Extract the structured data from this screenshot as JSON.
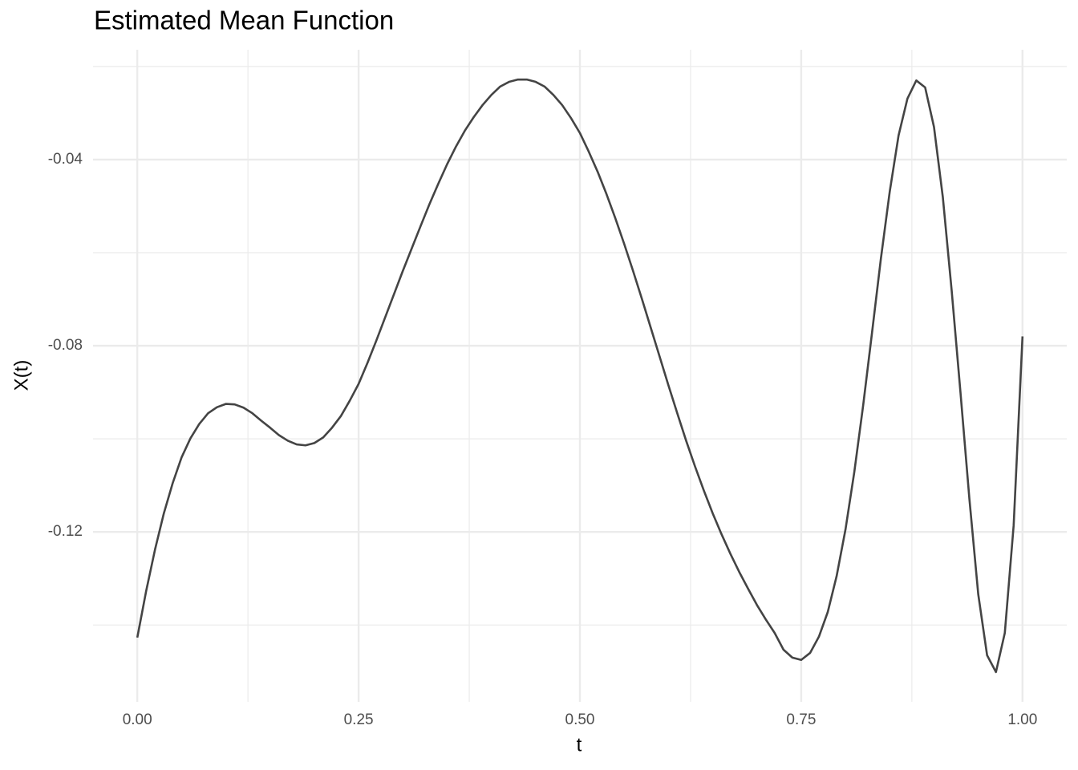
{
  "chart_data": {
    "type": "line",
    "title": "Estimated Mean Function",
    "x_label": "t",
    "y_label": "X(t)",
    "color": "#444444",
    "grid": true,
    "xlim": [
      -0.05,
      1.05
    ],
    "ylim": [
      -0.1565,
      -0.0164
    ],
    "xticks": [
      {
        "value": 0,
        "label": "0.00"
      },
      0.25,
      {
        "value": 0.5,
        "label": "0.50"
      },
      0.75,
      {
        "value": 1,
        "label": "1.00"
      }
    ],
    "yticks": [
      -0.12,
      -0.08,
      -0.04
    ],
    "x_minor_grid": [
      0.125,
      0.375,
      0.625,
      0.875
    ],
    "y_minor_grid": [
      -0.14,
      -0.1,
      -0.06,
      -0.02
    ],
    "x": [
      0,
      0.01,
      0.02,
      0.03,
      0.04,
      0.05,
      0.06,
      0.07,
      0.08,
      0.09,
      0.1,
      0.11,
      0.12,
      0.13,
      0.14,
      0.15,
      0.16,
      0.17,
      0.18,
      0.19,
      0.2,
      0.21,
      0.22,
      0.23,
      0.24,
      0.25,
      0.26,
      0.27,
      0.28,
      0.29,
      0.3,
      0.31,
      0.32,
      0.33,
      0.34,
      0.35,
      0.36,
      0.37,
      0.38,
      0.39,
      0.4,
      0.41,
      0.42,
      0.43,
      0.44,
      0.45,
      0.46,
      0.47,
      0.48,
      0.49,
      0.5,
      0.51,
      0.52,
      0.53,
      0.54,
      0.55,
      0.56,
      0.57,
      0.58,
      0.59,
      0.6,
      0.61,
      0.62,
      0.63,
      0.64,
      0.65,
      0.66,
      0.67,
      0.68,
      0.69,
      0.7,
      0.71,
      0.72,
      0.73,
      0.74,
      0.75,
      0.76,
      0.77,
      0.78,
      0.79,
      0.8,
      0.81,
      0.82,
      0.83,
      0.84,
      0.85,
      0.86,
      0.87,
      0.88,
      0.89,
      0.9,
      0.91,
      0.92,
      0.93,
      0.94,
      0.95,
      0.96,
      0.97,
      0.98,
      0.99,
      1
    ],
    "values": [
      -0.1427,
      -0.1327,
      -0.1238,
      -0.116,
      -0.1095,
      -0.104,
      -0.0999,
      -0.0968,
      -0.0945,
      -0.0932,
      -0.0925,
      -0.0926,
      -0.0933,
      -0.0945,
      -0.0961,
      -0.0976,
      -0.0992,
      -0.1004,
      -0.1012,
      -0.1014,
      -0.1009,
      -0.0997,
      -0.0976,
      -0.0951,
      -0.0918,
      -0.0882,
      -0.0837,
      -0.0789,
      -0.0739,
      -0.0689,
      -0.0639,
      -0.0591,
      -0.0543,
      -0.0496,
      -0.0452,
      -0.041,
      -0.0372,
      -0.0338,
      -0.0309,
      -0.0283,
      -0.0261,
      -0.0243,
      -0.0233,
      -0.0228,
      -0.0228,
      -0.0233,
      -0.0243,
      -0.0261,
      -0.0283,
      -0.0311,
      -0.0343,
      -0.0383,
      -0.0426,
      -0.0474,
      -0.0526,
      -0.0581,
      -0.0639,
      -0.0699,
      -0.0761,
      -0.0823,
      -0.0885,
      -0.0945,
      -0.1004,
      -0.1059,
      -0.1111,
      -0.116,
      -0.1205,
      -0.1247,
      -0.1286,
      -0.1322,
      -0.1357,
      -0.1388,
      -0.1417,
      -0.1453,
      -0.147,
      -0.1475,
      -0.146,
      -0.1425,
      -0.1372,
      -0.1295,
      -0.1195,
      -0.1071,
      -0.0928,
      -0.0772,
      -0.0613,
      -0.0469,
      -0.0348,
      -0.0269,
      -0.023,
      -0.0245,
      -0.033,
      -0.0481,
      -0.0682,
      -0.0902,
      -0.1129,
      -0.1334,
      -0.1465,
      -0.1501,
      -0.1417,
      -0.1186,
      -0.078
    ]
  }
}
